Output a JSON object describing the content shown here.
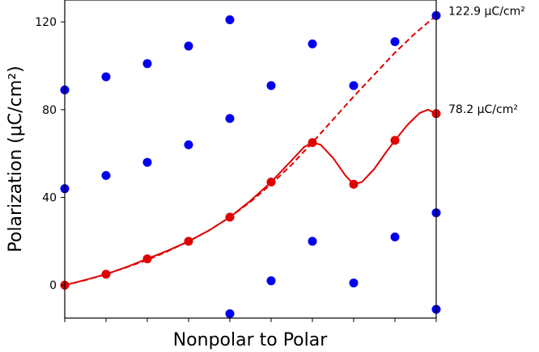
{
  "chart_data": {
    "type": "scatter",
    "xlabel": "Nonpolar to Polar",
    "ylabel": "Polarization (μC/cm²)",
    "ylim": [
      -15,
      130
    ],
    "xlim": [
      0,
      9
    ],
    "yticks": [
      0,
      40,
      80,
      120
    ],
    "x_tick_positions": [
      0,
      1,
      2,
      3,
      4,
      5,
      6,
      7,
      8,
      9
    ],
    "grid": false,
    "colors": {
      "scatter": "#0000ee",
      "curve": "#e00000"
    },
    "scatter_points": [
      {
        "x": 0,
        "y": 89
      },
      {
        "x": 0,
        "y": 44
      },
      {
        "x": 1,
        "y": 95
      },
      {
        "x": 1,
        "y": 50
      },
      {
        "x": 2,
        "y": 101
      },
      {
        "x": 2,
        "y": 56
      },
      {
        "x": 3,
        "y": 109
      },
      {
        "x": 3,
        "y": 64
      },
      {
        "x": 4,
        "y": 121
      },
      {
        "x": 4,
        "y": 76
      },
      {
        "x": 4,
        "y": -13
      },
      {
        "x": 5,
        "y": 91
      },
      {
        "x": 5,
        "y": 2
      },
      {
        "x": 6,
        "y": 110
      },
      {
        "x": 6,
        "y": 20
      },
      {
        "x": 7,
        "y": 91
      },
      {
        "x": 7,
        "y": 1
      },
      {
        "x": 8,
        "y": 111
      },
      {
        "x": 8,
        "y": 22
      },
      {
        "x": 9,
        "y": 122.9
      },
      {
        "x": 9,
        "y": 33
      },
      {
        "x": 9,
        "y": -11
      }
    ],
    "red_points": [
      {
        "x": 0,
        "y": 0
      },
      {
        "x": 1,
        "y": 5
      },
      {
        "x": 2,
        "y": 12
      },
      {
        "x": 3,
        "y": 20
      },
      {
        "x": 4,
        "y": 31
      },
      {
        "x": 5,
        "y": 47
      },
      {
        "x": 6,
        "y": 65
      },
      {
        "x": 7,
        "y": 46
      },
      {
        "x": 8,
        "y": 66
      },
      {
        "x": 9,
        "y": 78.2
      }
    ],
    "solid_curve": [
      [
        0,
        0
      ],
      [
        0.5,
        2.4
      ],
      [
        1,
        5
      ],
      [
        1.5,
        8.3
      ],
      [
        2,
        12
      ],
      [
        2.5,
        15.8
      ],
      [
        3,
        20
      ],
      [
        3.5,
        25
      ],
      [
        4,
        31
      ],
      [
        4.5,
        38.5
      ],
      [
        5,
        47
      ],
      [
        5.5,
        57
      ],
      [
        5.8,
        63
      ],
      [
        6,
        65
      ],
      [
        6.2,
        64
      ],
      [
        6.5,
        58
      ],
      [
        6.8,
        50
      ],
      [
        7,
        46
      ],
      [
        7.2,
        47
      ],
      [
        7.5,
        53
      ],
      [
        7.8,
        61
      ],
      [
        8,
        66
      ],
      [
        8.3,
        73
      ],
      [
        8.6,
        78.5
      ],
      [
        8.8,
        80
      ],
      [
        9,
        78.2
      ]
    ],
    "dashed_curve": [
      [
        0,
        0
      ],
      [
        0.5,
        2.3
      ],
      [
        1,
        5
      ],
      [
        1.5,
        8.2
      ],
      [
        2,
        11.5
      ],
      [
        2.5,
        15.5
      ],
      [
        3,
        20
      ],
      [
        3.5,
        25
      ],
      [
        4,
        31
      ],
      [
        4.5,
        38
      ],
      [
        5,
        46
      ],
      [
        5.5,
        55
      ],
      [
        6,
        65
      ],
      [
        6.5,
        75.5
      ],
      [
        7,
        86
      ],
      [
        7.5,
        96
      ],
      [
        8,
        106
      ],
      [
        8.5,
        115
      ],
      [
        9,
        122.9
      ]
    ],
    "annotations": [
      {
        "text": "122.9 μC/cm²",
        "y": 122.9
      },
      {
        "text": "78.2 μC/cm²",
        "y": 78.2
      }
    ]
  }
}
